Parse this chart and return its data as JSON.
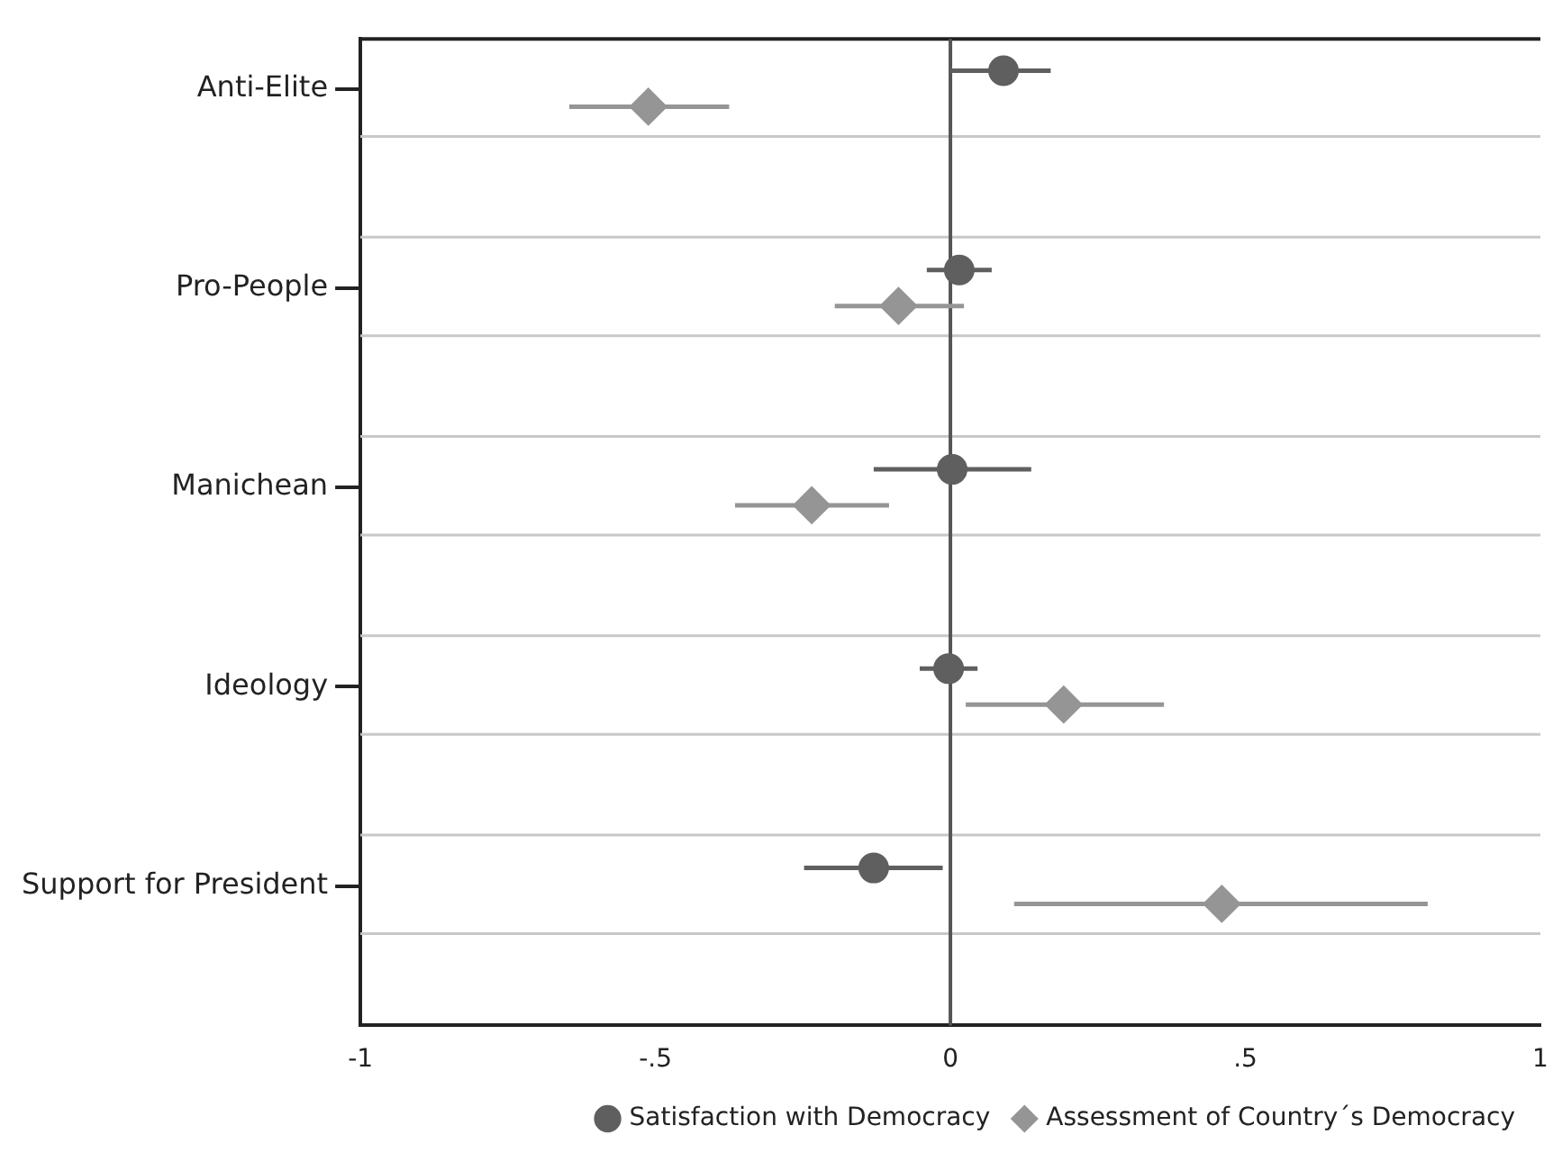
{
  "chart_data": {
    "type": "scatter",
    "orientation": "horizontal",
    "categories": [
      "Anti-Elite",
      "Pro-People",
      "Manichean",
      "Ideology",
      "Support for President"
    ],
    "series": [
      {
        "name": "Satisfaction with Democracy",
        "color": "#5f5f5f",
        "marker": "circle",
        "values": [
          0.09,
          0.015,
          0.003,
          -0.003,
          -0.13
        ],
        "errors": [
          [
            0,
            0.17
          ],
          [
            -0.04,
            0.07
          ],
          [
            -0.13,
            0.137
          ],
          [
            -0.052,
            0.046
          ],
          [
            -0.248,
            -0.013
          ]
        ]
      },
      {
        "name": "Assessment of Country´s Democracy",
        "color": "#959595",
        "marker": "diamond",
        "values": [
          -0.512,
          -0.088,
          -0.235,
          0.192,
          0.46
        ],
        "errors": [
          [
            -0.646,
            -0.375
          ],
          [
            -0.196,
            0.023
          ],
          [
            -0.365,
            -0.104
          ],
          [
            0.026,
            0.362
          ],
          [
            0.108,
            0.809
          ]
        ]
      }
    ],
    "xlim": [
      -1,
      1
    ],
    "xticks": [
      {
        "value": -1,
        "label": "-1"
      },
      {
        "value": -0.5,
        "label": "-.5"
      },
      0,
      {
        "value": 0.5,
        "label": ".5"
      },
      1
    ],
    "ref_lines": [
      {
        "axis": "x",
        "value": 0,
        "color": "#555555"
      }
    ],
    "grid": "y",
    "legend": "bottom"
  }
}
